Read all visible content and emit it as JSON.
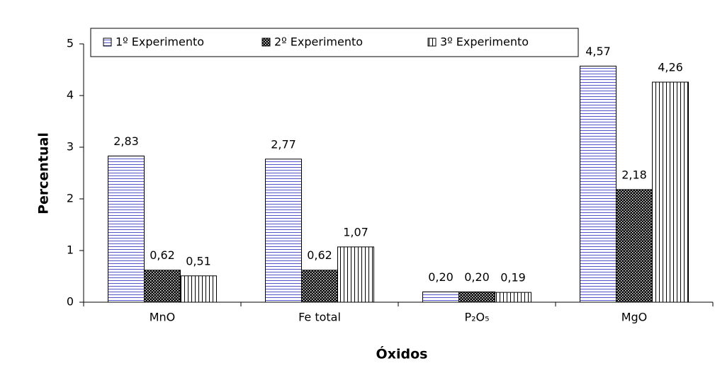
{
  "chart_data": {
    "type": "bar",
    "y_label": "Percentual",
    "x_label": "Óxidos",
    "categories": [
      "MnO",
      "Fe total",
      "P₂O₅",
      "MgO"
    ],
    "series": [
      {
        "name": "1º Experimento",
        "color": "#5555cc",
        "pattern": "horizontal",
        "values": [
          2.83,
          2.77,
          0.2,
          4.57
        ],
        "value_labels": [
          "2,83",
          "2,77",
          "0,20",
          "4,57"
        ]
      },
      {
        "name": "2º Experimento",
        "color": "#000000",
        "pattern": "dots",
        "values": [
          0.62,
          0.62,
          0.2,
          2.18
        ],
        "value_labels": [
          "0,62",
          "0,62",
          "0,20",
          "2,18"
        ]
      },
      {
        "name": "3º Experimento",
        "color": "#000000",
        "pattern": "vertical",
        "values": [
          0.51,
          1.07,
          0.19,
          4.26
        ],
        "value_labels": [
          "0,51",
          "1,07",
          "0,19",
          "4,26"
        ]
      }
    ],
    "ylim": [
      0,
      5
    ],
    "yticks": [
      0,
      1,
      2,
      3,
      4,
      5
    ],
    "grid": false,
    "legend": "top"
  }
}
